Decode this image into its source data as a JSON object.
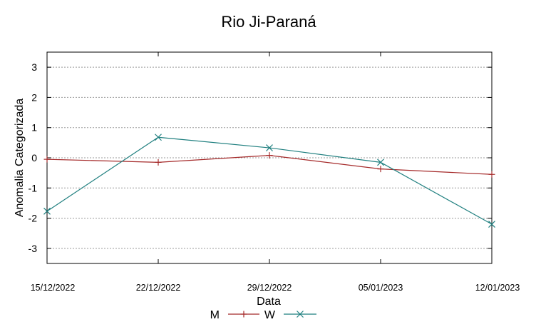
{
  "chart_data": {
    "type": "line",
    "title": "Rio Ji-Paraná",
    "xlabel": "Data",
    "ylabel": "Anomalia Categorizada",
    "x": [
      "15/12/2022",
      "22/12/2022",
      "29/12/2022",
      "05/01/2023",
      "12/01/2023"
    ],
    "ylim": [
      -3.5,
      3.5
    ],
    "yticks": [
      -3,
      -2,
      -1,
      0,
      1,
      2,
      3
    ],
    "grid": true,
    "legend_position": "bottom",
    "series": [
      {
        "name": "M",
        "color": "#a52a2a",
        "marker": "plus",
        "values": [
          -0.05,
          -0.15,
          0.08,
          -0.37,
          -0.55
        ]
      },
      {
        "name": "W",
        "color": "#1f7f7f",
        "marker": "cross",
        "values": [
          -1.77,
          0.68,
          0.33,
          -0.15,
          -2.2
        ]
      }
    ]
  }
}
